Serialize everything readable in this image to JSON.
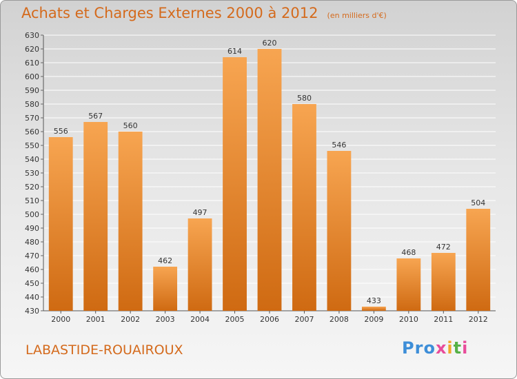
{
  "title": "Achats et Charges Externes 2000 à 2012",
  "unit_note": "(en milliers d'€)",
  "commune": "LABASTIDE-ROUAIROUX",
  "logo": {
    "text": "Proxiti",
    "letters": [
      "Pro",
      "x",
      "i",
      "t",
      "i"
    ]
  },
  "colors": {
    "bar_top": "#f7a551",
    "bar_bottom": "#cf6a12",
    "title": "#d46a1c",
    "grid": "#ffffff"
  },
  "chart_data": {
    "type": "bar",
    "categories": [
      "2000",
      "2001",
      "2002",
      "2003",
      "2004",
      "2005",
      "2006",
      "2007",
      "2008",
      "2009",
      "2010",
      "2011",
      "2012"
    ],
    "values": [
      556,
      567,
      560,
      462,
      497,
      614,
      620,
      580,
      546,
      433,
      468,
      472,
      504
    ],
    "ylim": [
      430,
      630
    ],
    "ytick_step": 10,
    "grid": true,
    "data_labels": true
  }
}
